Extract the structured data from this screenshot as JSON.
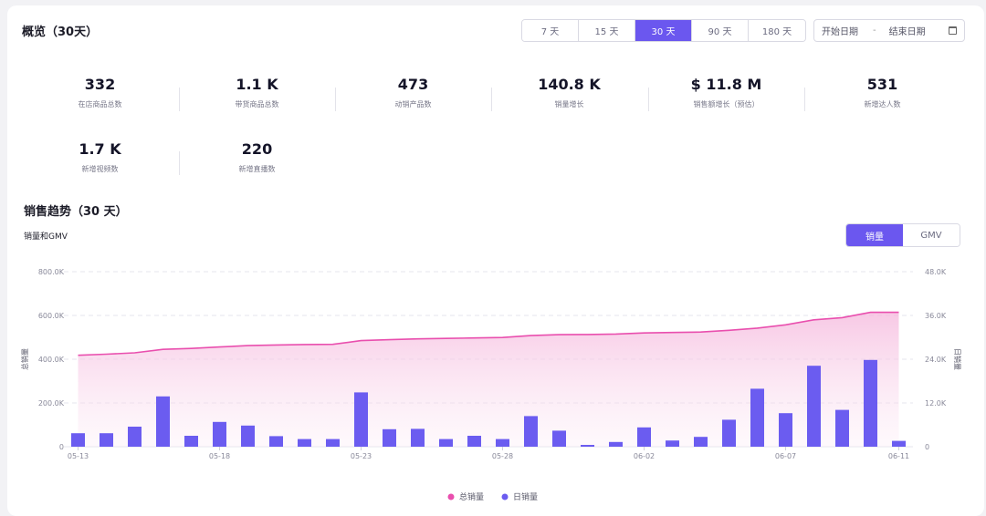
{
  "overview": {
    "title": "概览（30天）",
    "ranges": [
      "7 天",
      "15 天",
      "30 天",
      "90 天",
      "180 天"
    ],
    "active_range": "30 天",
    "date_start_placeholder": "开始日期",
    "date_sep": "-",
    "date_end_placeholder": "结束日期"
  },
  "stats": [
    {
      "value": "332",
      "label": "在店商品总数"
    },
    {
      "value": "1.1 K",
      "label": "带货商品总数"
    },
    {
      "value": "473",
      "label": "动销产品数"
    },
    {
      "value": "140.8 K",
      "label": "销量增长"
    },
    {
      "value": "$ 11.8 M",
      "label": "销售额增长（预估）"
    },
    {
      "value": "531",
      "label": "新增达人数"
    },
    {
      "value": "1.7 K",
      "label": "新增视频数"
    },
    {
      "value": "220",
      "label": "新增直播数"
    }
  ],
  "trend": {
    "title": "销售趋势（30 天）",
    "subtitle": "销量和GMV",
    "tabs": [
      "销量",
      "GMV"
    ],
    "active_tab": "销量"
  },
  "colors": {
    "accent": "#6b57ef",
    "line": "#e94fae",
    "bar": "#6b5cf0"
  },
  "chart_data": {
    "type": "bar+area",
    "x": [
      "05-13",
      "05-14",
      "05-15",
      "05-16",
      "05-17",
      "05-18",
      "05-19",
      "05-20",
      "05-21",
      "05-22",
      "05-23",
      "05-24",
      "05-25",
      "05-26",
      "05-27",
      "05-28",
      "05-29",
      "05-30",
      "05-31",
      "06-01",
      "06-02",
      "06-03",
      "06-04",
      "06-05",
      "06-06",
      "06-07",
      "06-08",
      "06-09",
      "06-10",
      "06-11"
    ],
    "x_tick_labels": [
      "05-13",
      "05-18",
      "05-23",
      "05-28",
      "06-02",
      "06-07",
      "06-11"
    ],
    "left_axis": {
      "label": "总销量",
      "ticks": [
        "0",
        "200.0K",
        "400.0K",
        "600.0K",
        "800.0K"
      ],
      "ylim": [
        0,
        800000
      ]
    },
    "right_axis": {
      "label": "日销量",
      "ticks": [
        "0",
        "12.0K",
        "24.0K",
        "36.0K",
        "48.0K"
      ],
      "ylim": [
        0,
        48000
      ]
    },
    "series": [
      {
        "name": "总销量",
        "axis": "left",
        "type": "area",
        "values": [
          418000,
          423000,
          429000,
          445000,
          449000,
          456000,
          462000,
          465000,
          467000,
          468000,
          485000,
          489000,
          493000,
          495000,
          497000,
          499000,
          508000,
          512000,
          513000,
          515000,
          520000,
          522000,
          524000,
          532000,
          542000,
          557000,
          580000,
          590000,
          614000,
          614000
        ]
      },
      {
        "name": "日销量",
        "axis": "right",
        "type": "bar",
        "values": [
          3700,
          3700,
          5500,
          13800,
          3000,
          6800,
          5800,
          2900,
          2100,
          2100,
          14900,
          4800,
          4900,
          2100,
          3000,
          2100,
          8400,
          4400,
          500,
          1300,
          5300,
          1700,
          2700,
          7400,
          15900,
          9200,
          22200,
          10100,
          23800,
          1600
        ]
      }
    ],
    "legend": [
      "总销量",
      "日销量"
    ],
    "legend_position": "bottom",
    "grid": true
  }
}
